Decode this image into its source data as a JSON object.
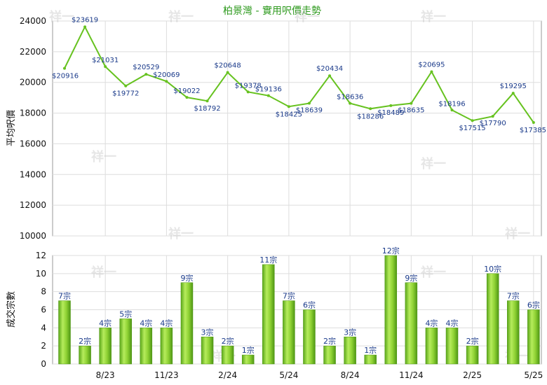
{
  "chart_data": [
    {
      "type": "line",
      "title": "柏景灣 - 實用呎價走勢",
      "ylabel": "平均呎價",
      "ylim": [
        10000,
        24000
      ],
      "yticks": [
        10000,
        12000,
        14000,
        16000,
        18000,
        20000,
        22000,
        24000
      ],
      "grid": true,
      "color": "#66c21f",
      "values": [
        20916,
        23619,
        21031,
        19772,
        20529,
        20069,
        19022,
        18792,
        20648,
        19378,
        19136,
        18425,
        18639,
        20434,
        18636,
        18286,
        18489,
        18635,
        20695,
        18196,
        17515,
        17790,
        19295,
        17385
      ],
      "labels": [
        "$20916",
        "$23619",
        "$21031",
        "$19772",
        "$20529",
        "$20069",
        "$19022",
        "$18792",
        "$20648",
        "$19378",
        "$19136",
        "$18425",
        "$18639",
        "$20434",
        "$18636",
        "$18286",
        "$18489",
        "$18635",
        "$20695",
        "$18196",
        "$17515",
        "$17790",
        "$19295",
        "$17385"
      ]
    },
    {
      "type": "bar",
      "ylabel": "成交宗數",
      "ylim": [
        0,
        12
      ],
      "yticks": [
        0,
        2,
        4,
        6,
        8,
        10,
        12
      ],
      "grid": true,
      "color": "#7fc92a",
      "values": [
        7,
        2,
        4,
        5,
        4,
        4,
        9,
        3,
        2,
        1,
        11,
        7,
        6,
        2,
        3,
        1,
        12,
        9,
        4,
        4,
        2,
        10,
        7,
        6
      ],
      "labels": [
        "7宗",
        "2宗",
        "4宗",
        "5宗",
        "4宗",
        "4宗",
        "9宗",
        "3宗",
        "2宗",
        "1宗",
        "11宗",
        "7宗",
        "6宗",
        "2宗",
        "3宗",
        "1宗",
        "12宗",
        "9宗",
        "4宗",
        "4宗",
        "2宗",
        "10宗",
        "7宗",
        "6宗"
      ],
      "xticks": [
        {
          "index": 2,
          "label": "8/23"
        },
        {
          "index": 5,
          "label": "11/23"
        },
        {
          "index": 8,
          "label": "2/24"
        },
        {
          "index": 11,
          "label": "5/24"
        },
        {
          "index": 14,
          "label": "8/24"
        },
        {
          "index": 17,
          "label": "11/24"
        },
        {
          "index": 20,
          "label": "2/25"
        },
        {
          "index": 23,
          "label": "5/25"
        }
      ]
    }
  ],
  "watermark": "祥一"
}
